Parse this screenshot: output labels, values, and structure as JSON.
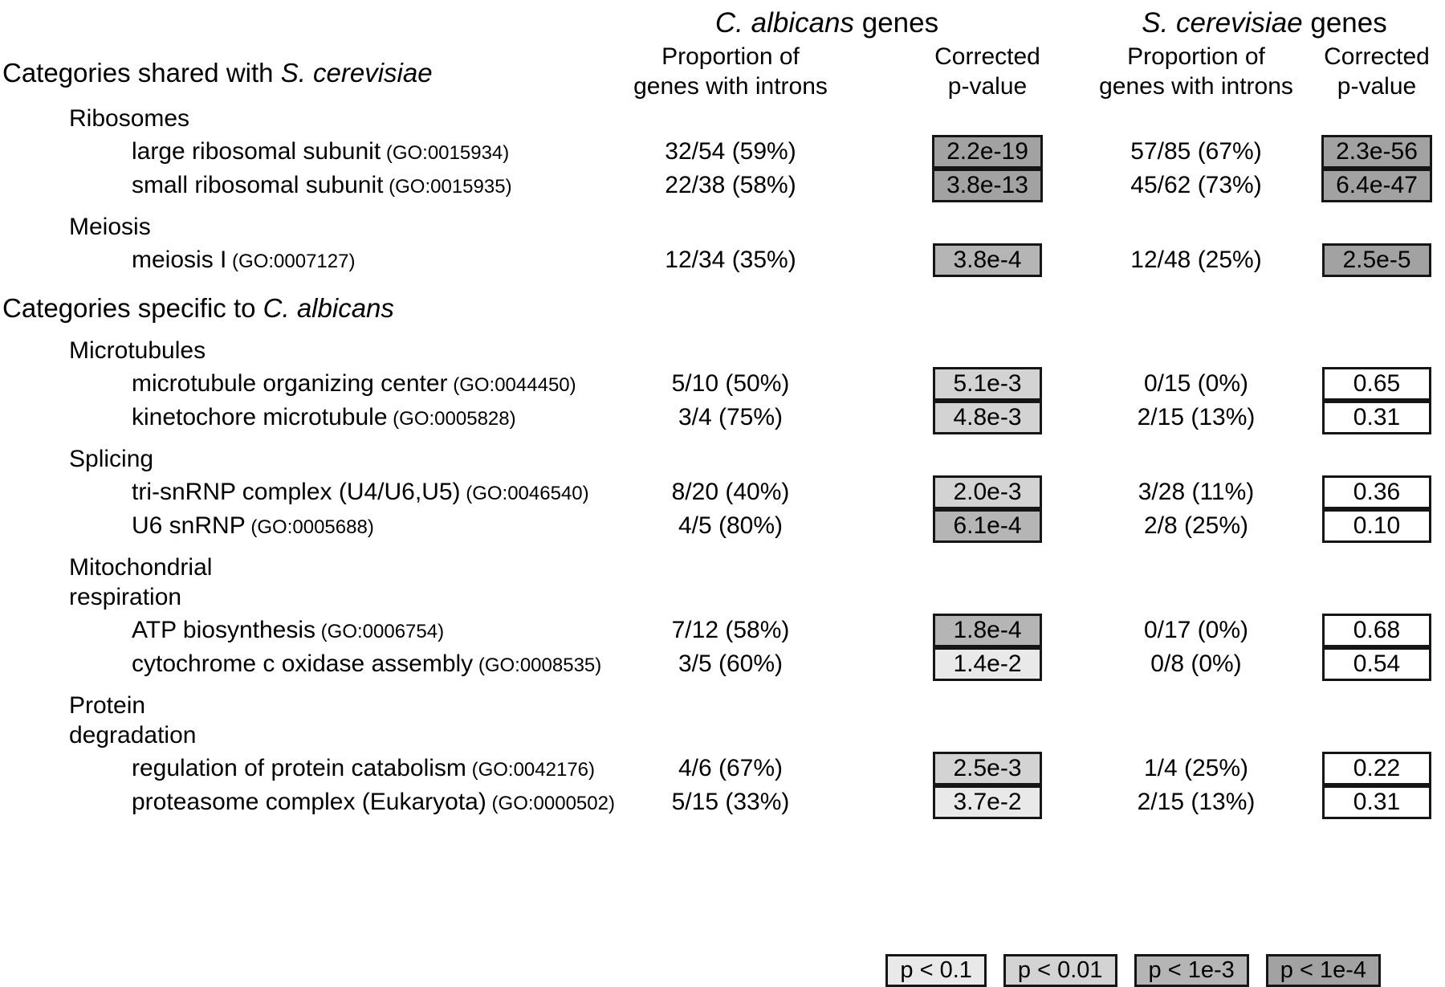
{
  "header": {
    "ca_genes": {
      "species": "C. albicans",
      "suffix": " genes"
    },
    "sc_genes": {
      "species": "S. cerevisiae",
      "suffix": " genes"
    },
    "proportion_line1": "Proportion of",
    "proportion_line2": "genes with introns",
    "corrected_line1": "Corrected",
    "corrected_line2": "p-value"
  },
  "sections": [
    {
      "title": {
        "prefix": "Categories shared with ",
        "italic": "S. cerevisiae"
      },
      "groups": [
        {
          "name_lines": [
            "Ribosomes"
          ],
          "rows": [
            {
              "label": "large ribosomal subunit",
              "go_id": "(GO:0015934)",
              "ca_proportion": "32/54 (59%)",
              "ca_pvalue": "2.2e-19",
              "ca_level": "p_lt_1e4",
              "sc_proportion": "57/85 (67%)",
              "sc_pvalue": "2.3e-56",
              "sc_level": "p_lt_1e4"
            },
            {
              "label": "small ribosomal subunit",
              "go_id": "(GO:0015935)",
              "ca_proportion": "22/38 (58%)",
              "ca_pvalue": "3.8e-13",
              "ca_level": "p_lt_1e4",
              "sc_proportion": "45/62 (73%)",
              "sc_pvalue": "6.4e-47",
              "sc_level": "p_lt_1e4"
            }
          ]
        },
        {
          "name_lines": [
            "Meiosis"
          ],
          "rows": [
            {
              "label": "meiosis I",
              "go_id": "(GO:0007127)",
              "ca_proportion": "12/34 (35%)",
              "ca_pvalue": "3.8e-4",
              "ca_level": "p_lt_1e3",
              "sc_proportion": "12/48 (25%)",
              "sc_pvalue": "2.5e-5",
              "sc_level": "p_lt_1e4"
            }
          ]
        }
      ]
    },
    {
      "title": {
        "prefix": "Categories specific to ",
        "italic": "C. albicans"
      },
      "groups": [
        {
          "name_lines": [
            "Microtubules"
          ],
          "rows": [
            {
              "label": "microtubule organizing center",
              "go_id": "(GO:0044450)",
              "ca_proportion": "5/10 (50%)",
              "ca_pvalue": "5.1e-3",
              "ca_level": "p_lt_001",
              "sc_proportion": "0/15 (0%)",
              "sc_pvalue": "0.65",
              "sc_level": "none"
            },
            {
              "label": "kinetochore microtubule",
              "go_id": "(GO:0005828)",
              "ca_proportion": "3/4 (75%)",
              "ca_pvalue": "4.8e-3",
              "ca_level": "p_lt_001",
              "sc_proportion": "2/15 (13%)",
              "sc_pvalue": "0.31",
              "sc_level": "none"
            }
          ]
        },
        {
          "name_lines": [
            "Splicing"
          ],
          "rows": [
            {
              "label": "tri-snRNP complex (U4/U6,U5)",
              "go_id": "(GO:0046540)",
              "ca_proportion": "8/20 (40%)",
              "ca_pvalue": "2.0e-3",
              "ca_level": "p_lt_001",
              "sc_proportion": "3/28 (11%)",
              "sc_pvalue": "0.36",
              "sc_level": "none"
            },
            {
              "label": "U6 snRNP",
              "go_id": "(GO:0005688)",
              "ca_proportion": "4/5 (80%)",
              "ca_pvalue": "6.1e-4",
              "ca_level": "p_lt_1e3",
              "sc_proportion": "2/8 (25%)",
              "sc_pvalue": "0.10",
              "sc_level": "none"
            }
          ]
        },
        {
          "name_lines": [
            "Mitochondrial",
            "respiration"
          ],
          "rows": [
            {
              "label": "ATP biosynthesis",
              "go_id": "(GO:0006754)",
              "ca_proportion": "7/12 (58%)",
              "ca_pvalue": "1.8e-4",
              "ca_level": "p_lt_1e3",
              "sc_proportion": "0/17 (0%)",
              "sc_pvalue": "0.68",
              "sc_level": "none"
            },
            {
              "label": "cytochrome c oxidase assembly",
              "go_id": "(GO:0008535)",
              "ca_proportion": "3/5 (60%)",
              "ca_pvalue": "1.4e-2",
              "ca_level": "p_lt_01",
              "sc_proportion": "0/8 (0%)",
              "sc_pvalue": "0.54",
              "sc_level": "none"
            }
          ]
        },
        {
          "name_lines": [
            "Protein",
            "degradation"
          ],
          "rows": [
            {
              "label": "regulation of protein catabolism",
              "go_id": "(GO:0042176)",
              "ca_proportion": "4/6 (67%)",
              "ca_pvalue": "2.5e-3",
              "ca_level": "p_lt_001",
              "sc_proportion": "1/4 (25%)",
              "sc_pvalue": "0.22",
              "sc_level": "none"
            },
            {
              "label": "proteasome complex (Eukaryota)",
              "go_id": "(GO:0000502)",
              "ca_proportion": "5/15 (33%)",
              "ca_pvalue": "3.7e-2",
              "ca_level": "p_lt_01",
              "sc_proportion": "2/15 (13%)",
              "sc_pvalue": "0.31",
              "sc_level": "none"
            }
          ]
        }
      ]
    }
  ],
  "legend": [
    {
      "label": "p < 0.1",
      "level": "p_lt_01"
    },
    {
      "label": "p < 0.01",
      "level": "p_lt_001"
    },
    {
      "label": "p < 1e-3",
      "level": "p_lt_1e3"
    },
    {
      "label": "p < 1e-4",
      "level": "p_lt_1e4"
    }
  ],
  "colors": {
    "p_lt_01": "#e9e9e9",
    "p_lt_001": "#d3d3d3",
    "p_lt_1e3": "#b5b5b5",
    "p_lt_1e4": "#a2a2a2",
    "none": "#ffffff",
    "box_border": "#151515"
  }
}
